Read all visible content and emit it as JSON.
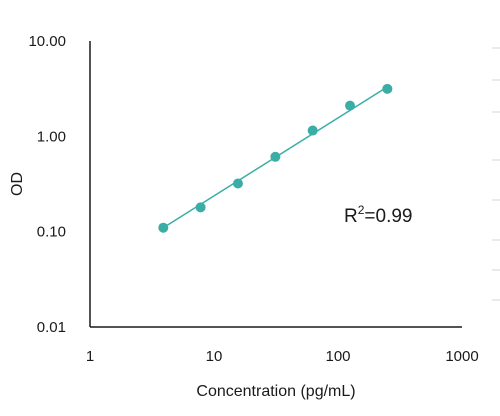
{
  "chart_data": {
    "type": "scatter",
    "xlabel": "Concentration (pg/mL)",
    "ylabel": "OD",
    "xscale": "log",
    "yscale": "log",
    "xlim": [
      1,
      1000
    ],
    "ylim": [
      0.01,
      10
    ],
    "x_ticks": [
      1,
      10,
      100,
      1000
    ],
    "x_tick_labels": [
      "1",
      "10",
      "100",
      "1000"
    ],
    "y_ticks": [
      0.01,
      0.1,
      1,
      10
    ],
    "y_tick_labels": [
      "0.01",
      "0.10",
      "1.00",
      "10.00"
    ],
    "grid": false,
    "series": [
      {
        "x": [
          3.9,
          7.8,
          15.6,
          31.25,
          62.5,
          125,
          250
        ],
        "y": [
          0.11,
          0.18,
          0.32,
          0.61,
          1.15,
          2.1,
          3.15
        ]
      }
    ],
    "trendline": {
      "x": [
        3.9,
        250
      ],
      "y": [
        0.11,
        3.3
      ]
    },
    "annotation": {
      "base": "R",
      "superscript": "2",
      "rest": "=0.99"
    },
    "colors": {
      "marker": "#3aaea6",
      "line": "#3aaea6",
      "axis": "#1a1a1a"
    }
  }
}
